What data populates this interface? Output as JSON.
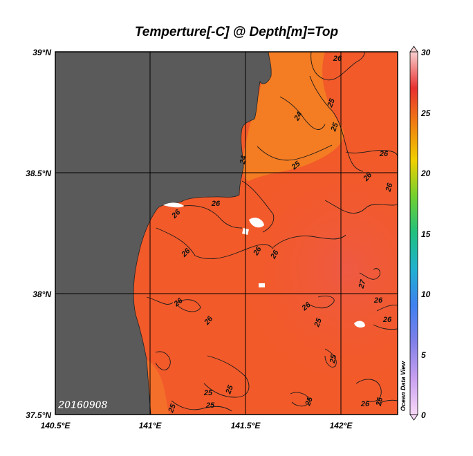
{
  "title": "Temperture[-C] @ Depth[m]=Top",
  "date_stamp": "20160908",
  "watermark": "Ocean Data View",
  "lat_ticks": [
    "39°N",
    "38.5°N",
    "38°N",
    "37.5°N"
  ],
  "lon_ticks": [
    "140.5°E",
    "141°E",
    "141.5°E",
    "142°E"
  ],
  "colorbar_ticks": [
    "30",
    "25",
    "20",
    "15",
    "10",
    "5",
    "0"
  ],
  "colors": {
    "land": "#5a5a5a",
    "sea": "#f25a2a",
    "sea_warm": "#f45f34",
    "sea_cool": "#f47d22",
    "coast_white": "#ffffff"
  },
  "contour_labels": [
    {
      "text": "26"
    },
    {
      "text": "25"
    },
    {
      "text": "24"
    },
    {
      "text": "25"
    },
    {
      "text": "24"
    },
    {
      "text": "25"
    },
    {
      "text": "26"
    },
    {
      "text": "26"
    },
    {
      "text": "26"
    },
    {
      "text": "26"
    },
    {
      "text": "26"
    },
    {
      "text": "26"
    },
    {
      "text": "26"
    },
    {
      "text": "26"
    },
    {
      "text": "27"
    },
    {
      "text": "26"
    },
    {
      "text": "26"
    },
    {
      "text": "25"
    },
    {
      "text": "26"
    },
    {
      "text": "26"
    },
    {
      "text": "26"
    },
    {
      "text": "25"
    },
    {
      "text": "25"
    },
    {
      "text": "25"
    },
    {
      "text": "25"
    },
    {
      "text": "25"
    },
    {
      "text": "25"
    },
    {
      "text": "26"
    },
    {
      "text": "26"
    }
  ]
}
